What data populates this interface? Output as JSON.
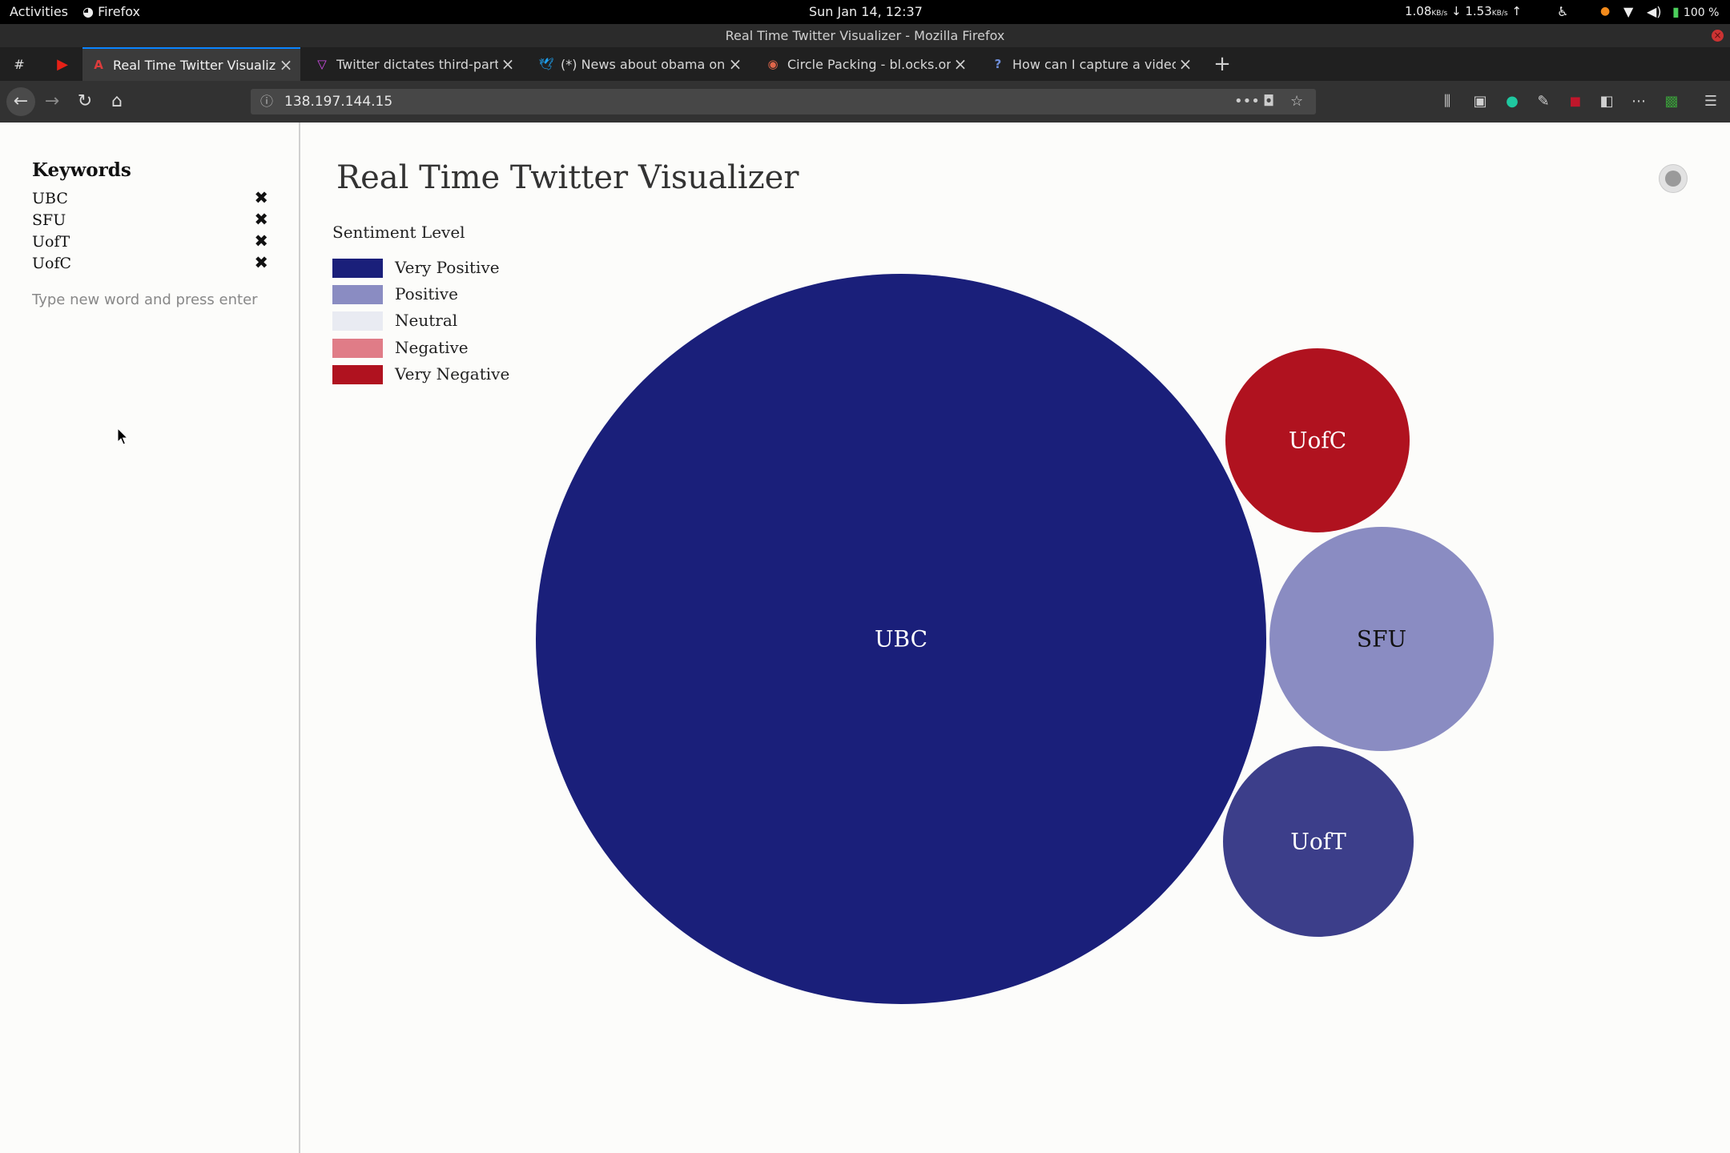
{
  "system_bar": {
    "activities": "Activities",
    "app": "Firefox",
    "clock": "Sun Jan 14, 12:37",
    "net_down": "1.08",
    "net_up": "1.53",
    "net_unit": "KB/s",
    "battery": "100 %"
  },
  "window": {
    "title": "Real Time Twitter Visualizer - Mozilla Firefox"
  },
  "tabs": [
    {
      "label": "Real Time Twitter Visualizer",
      "favicon": "angular-icon",
      "active": true
    },
    {
      "label": "Twitter dictates third-party",
      "favicon": "vercel-icon"
    },
    {
      "label": "(*) News about obama on",
      "favicon": "twitter-bird-icon"
    },
    {
      "label": "Circle Packing - bl.ocks.org",
      "favicon": "colorful-icon"
    },
    {
      "label": "How can I capture a video",
      "favicon": "question-icon"
    }
  ],
  "pinned_tabs": [
    "#"
  ],
  "navbar": {
    "url": "138.197.144.15"
  },
  "sidebar": {
    "title": "Keywords",
    "keywords": [
      "UBC",
      "SFU",
      "UofT",
      "UofC"
    ],
    "remove_glyph": "✖",
    "input_placeholder": "Type new word and press enter",
    "input_value": ""
  },
  "main": {
    "title": "Real Time Twitter Visualizer",
    "legend_title": "Sentiment Level",
    "legend": [
      {
        "label": "Very Positive",
        "color": "#1a1f7a"
      },
      {
        "label": "Positive",
        "color": "#8a8cc2"
      },
      {
        "label": "Neutral",
        "color": "#e9ebf2"
      },
      {
        "label": "Negative",
        "color": "#e07c87"
      },
      {
        "label": "Very Negative",
        "color": "#b0121f"
      }
    ],
    "bubbles": [
      {
        "label": "UBC",
        "color": "#1a1f7a",
        "text_color": "#ffffff"
      },
      {
        "label": "UofC",
        "color": "#b0121f",
        "text_color": "#ffffff"
      },
      {
        "label": "SFU",
        "color": "#8a8cc2",
        "text_color": "#111111"
      },
      {
        "label": "UofT",
        "color": "#3c3e8a",
        "text_color": "#ffffff"
      }
    ]
  }
}
